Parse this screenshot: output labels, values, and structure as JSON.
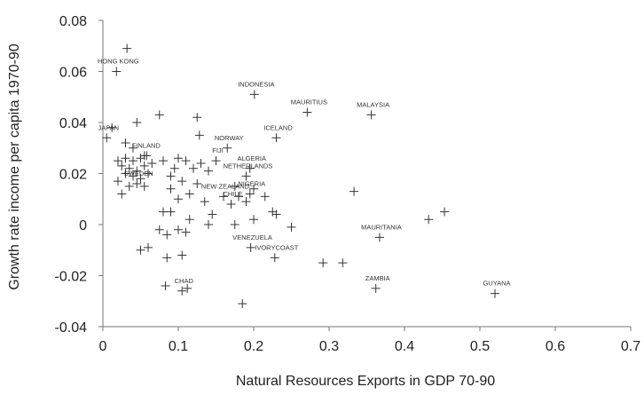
{
  "chart_data": {
    "type": "scatter",
    "xlabel": "Natural Resources Exports in GDP 70-90",
    "ylabel": "Growth rate income per capita 1970-90",
    "xlim": [
      0,
      0.7
    ],
    "ylim": [
      -0.04,
      0.08
    ],
    "x_ticks": [
      "0",
      "0.1",
      "0.2",
      "0.3",
      "0.4",
      "0.5",
      "0.6",
      "0.7"
    ],
    "y_ticks": [
      "0.08",
      "0.06",
      "0.04",
      "0.02",
      "0",
      "-0.02",
      "-0.04"
    ],
    "marker": "plus",
    "grid": false,
    "labeled_points": [
      {
        "label": "HONG KONG",
        "x": 0.018,
        "y": 0.06
      },
      {
        "label": "JAPAN",
        "x": 0.005,
        "y": 0.034
      },
      {
        "label": "FINLAND",
        "x": 0.055,
        "y": 0.027
      },
      {
        "label": "SWEDEN",
        "x": 0.045,
        "y": 0.016
      },
      {
        "label": "INDONESIA",
        "x": 0.201,
        "y": 0.051
      },
      {
        "label": "MAURITIUS",
        "x": 0.271,
        "y": 0.044
      },
      {
        "label": "MALAYSIA",
        "x": 0.356,
        "y": 0.043
      },
      {
        "label": "ICELAND",
        "x": 0.23,
        "y": 0.034
      },
      {
        "label": "NORWAY",
        "x": 0.165,
        "y": 0.03
      },
      {
        "label": "FIJI",
        "x": 0.15,
        "y": 0.025
      },
      {
        "label": "ALGERIA",
        "x": 0.195,
        "y": 0.022
      },
      {
        "label": "NETHERLANDS",
        "x": 0.19,
        "y": 0.019
      },
      {
        "label": "NIGERIA",
        "x": 0.195,
        "y": 0.012
      },
      {
        "label": "NEW ZEALAND",
        "x": 0.16,
        "y": 0.011
      },
      {
        "label": "CHILE",
        "x": 0.17,
        "y": 0.008
      },
      {
        "label": "MAURITANIA",
        "x": 0.367,
        "y": -0.005
      },
      {
        "label": "VENEZUELA",
        "x": 0.196,
        "y": -0.009
      },
      {
        "label": "IVORYCOAST",
        "x": 0.228,
        "y": -0.013
      },
      {
        "label": "CHAD",
        "x": 0.105,
        "y": -0.026
      },
      {
        "label": "ZAMBIA",
        "x": 0.362,
        "y": -0.025
      },
      {
        "label": "GUYANA",
        "x": 0.52,
        "y": -0.027
      }
    ],
    "other_points": [
      {
        "x": 0.032,
        "y": 0.069
      },
      {
        "x": 0.075,
        "y": 0.043
      },
      {
        "x": 0.045,
        "y": 0.04
      },
      {
        "x": 0.012,
        "y": 0.038
      },
      {
        "x": 0.125,
        "y": 0.042
      },
      {
        "x": 0.128,
        "y": 0.035
      },
      {
        "x": 0.03,
        "y": 0.032
      },
      {
        "x": 0.04,
        "y": 0.03
      },
      {
        "x": 0.058,
        "y": 0.027
      },
      {
        "x": 0.02,
        "y": 0.025
      },
      {
        "x": 0.03,
        "y": 0.026
      },
      {
        "x": 0.04,
        "y": 0.025
      },
      {
        "x": 0.05,
        "y": 0.026
      },
      {
        "x": 0.025,
        "y": 0.023
      },
      {
        "x": 0.035,
        "y": 0.022
      },
      {
        "x": 0.045,
        "y": 0.021
      },
      {
        "x": 0.055,
        "y": 0.023
      },
      {
        "x": 0.065,
        "y": 0.024
      },
      {
        "x": 0.03,
        "y": 0.02
      },
      {
        "x": 0.04,
        "y": 0.019
      },
      {
        "x": 0.05,
        "y": 0.018
      },
      {
        "x": 0.06,
        "y": 0.02
      },
      {
        "x": 0.02,
        "y": 0.017
      },
      {
        "x": 0.035,
        "y": 0.015
      },
      {
        "x": 0.055,
        "y": 0.015
      },
      {
        "x": 0.025,
        "y": 0.012
      },
      {
        "x": 0.08,
        "y": 0.025
      },
      {
        "x": 0.095,
        "y": 0.022
      },
      {
        "x": 0.1,
        "y": 0.026
      },
      {
        "x": 0.11,
        "y": 0.025
      },
      {
        "x": 0.12,
        "y": 0.022
      },
      {
        "x": 0.13,
        "y": 0.024
      },
      {
        "x": 0.14,
        "y": 0.021
      },
      {
        "x": 0.09,
        "y": 0.019
      },
      {
        "x": 0.105,
        "y": 0.017
      },
      {
        "x": 0.125,
        "y": 0.016
      },
      {
        "x": 0.09,
        "y": 0.014
      },
      {
        "x": 0.115,
        "y": 0.012
      },
      {
        "x": 0.1,
        "y": 0.01
      },
      {
        "x": 0.135,
        "y": 0.009
      },
      {
        "x": 0.175,
        "y": 0.015
      },
      {
        "x": 0.2,
        "y": 0.014
      },
      {
        "x": 0.215,
        "y": 0.011
      },
      {
        "x": 0.19,
        "y": 0.009
      },
      {
        "x": 0.18,
        "y": 0.011
      },
      {
        "x": 0.08,
        "y": 0.005
      },
      {
        "x": 0.09,
        "y": 0.005
      },
      {
        "x": 0.115,
        "y": 0.002
      },
      {
        "x": 0.145,
        "y": 0.004
      },
      {
        "x": 0.14,
        "y": 0.0
      },
      {
        "x": 0.175,
        "y": 0.0
      },
      {
        "x": 0.2,
        "y": 0.002
      },
      {
        "x": 0.225,
        "y": 0.005
      },
      {
        "x": 0.23,
        "y": 0.004
      },
      {
        "x": 0.25,
        "y": -0.001
      },
      {
        "x": 0.075,
        "y": -0.002
      },
      {
        "x": 0.085,
        "y": -0.004
      },
      {
        "x": 0.1,
        "y": -0.002
      },
      {
        "x": 0.11,
        "y": -0.003
      },
      {
        "x": 0.06,
        "y": -0.009
      },
      {
        "x": 0.05,
        "y": -0.01
      },
      {
        "x": 0.085,
        "y": -0.013
      },
      {
        "x": 0.105,
        "y": -0.012
      },
      {
        "x": 0.083,
        "y": -0.024
      },
      {
        "x": 0.112,
        "y": -0.025
      },
      {
        "x": 0.185,
        "y": -0.031
      },
      {
        "x": 0.292,
        "y": -0.015
      },
      {
        "x": 0.318,
        "y": -0.015
      },
      {
        "x": 0.333,
        "y": 0.013
      },
      {
        "x": 0.432,
        "y": 0.002
      },
      {
        "x": 0.453,
        "y": 0.005
      }
    ]
  }
}
